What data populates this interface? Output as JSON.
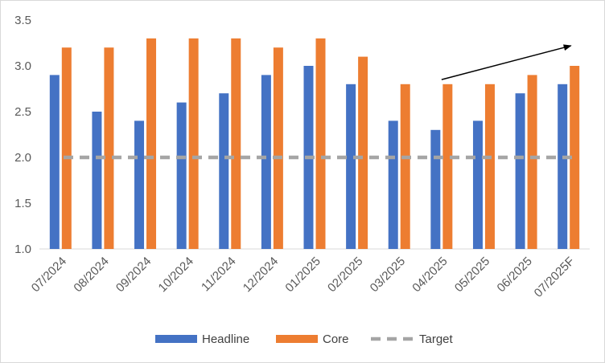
{
  "chart_data": {
    "type": "bar",
    "categories": [
      "07/2024",
      "08/2024",
      "09/2024",
      "10/2024",
      "11/2024",
      "12/2024",
      "01/2025",
      "02/2025",
      "03/2025",
      "04/2025",
      "05/2025",
      "06/2025",
      "07/2025F"
    ],
    "series": [
      {
        "name": "Headline",
        "type": "bar",
        "color": "#4472C4",
        "values": [
          2.9,
          2.5,
          2.4,
          2.6,
          2.7,
          2.9,
          3.0,
          2.8,
          2.4,
          2.3,
          2.4,
          2.7,
          2.8
        ]
      },
      {
        "name": "Core",
        "type": "bar",
        "color": "#ED7D31",
        "values": [
          3.2,
          3.2,
          3.3,
          3.3,
          3.3,
          3.2,
          3.3,
          3.1,
          2.8,
          2.8,
          2.8,
          2.9,
          3.0
        ]
      },
      {
        "name": "Target",
        "type": "line",
        "style": "dashed",
        "color": "#A5A5A5",
        "values": [
          2.0,
          2.0,
          2.0,
          2.0,
          2.0,
          2.0,
          2.0,
          2.0,
          2.0,
          2.0,
          2.0,
          2.0,
          2.0
        ]
      }
    ],
    "title": "",
    "xlabel": "",
    "ylabel": "",
    "ylim": [
      1.0,
      3.5
    ],
    "yticks": [
      "1.0",
      "1.5",
      "2.0",
      "2.5",
      "3.0",
      "3.5"
    ],
    "grid": false,
    "legend_position": "bottom",
    "annotation": {
      "kind": "arrow",
      "from": {
        "category": "04/2025",
        "y": 2.85
      },
      "to": {
        "category": "07/2025F",
        "y": 3.22
      },
      "color": "#000000"
    }
  }
}
